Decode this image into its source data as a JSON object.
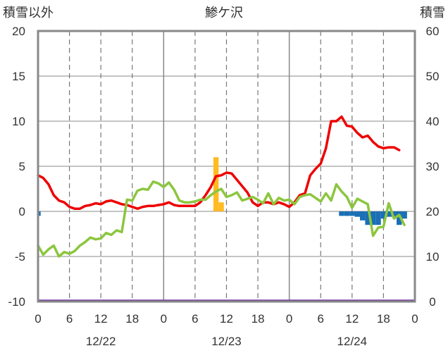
{
  "chart_data": {
    "type": "line",
    "title": "鯵ケ沢",
    "ylabel_left": "積雪以外",
    "ylabel_right": "積雪",
    "ylim_left": [
      -10,
      20
    ],
    "ylim_right": [
      0,
      60
    ],
    "yticks_left": [
      "20",
      "15",
      "10",
      "5",
      "0",
      "-5",
      "-10"
    ],
    "yticks_right": [
      "60",
      "50",
      "40",
      "30",
      "20",
      "10",
      "0"
    ],
    "xlim_hours": [
      0,
      72
    ],
    "xticks_labels": [
      "0",
      "6",
      "12",
      "18",
      "0",
      "6",
      "12",
      "18",
      "0",
      "6",
      "12",
      "18",
      "0"
    ],
    "date_labels": [
      "12/22",
      "12/23",
      "12/24"
    ],
    "grid": true,
    "series": [
      {
        "color": "#ee0000",
        "axis": "left",
        "values": [
          [
            0,
            4.0
          ],
          [
            1,
            3.7
          ],
          [
            2,
            3.0
          ],
          [
            3,
            1.8
          ],
          [
            4,
            1.2
          ],
          [
            5,
            1.0
          ],
          [
            6,
            0.5
          ],
          [
            7,
            0.3
          ],
          [
            8,
            0.3
          ],
          [
            9,
            0.6
          ],
          [
            10,
            0.7
          ],
          [
            11,
            0.9
          ],
          [
            12,
            0.8
          ],
          [
            13,
            1.1
          ],
          [
            14,
            1.2
          ],
          [
            15,
            1.0
          ],
          [
            16,
            0.8
          ],
          [
            17,
            0.7
          ],
          [
            18,
            0.5
          ],
          [
            19,
            0.3
          ],
          [
            20,
            0.5
          ],
          [
            21,
            0.6
          ],
          [
            22,
            0.6
          ],
          [
            23,
            0.7
          ],
          [
            24,
            0.8
          ],
          [
            25,
            1.0
          ],
          [
            26,
            0.7
          ],
          [
            27,
            0.6
          ],
          [
            28,
            0.6
          ],
          [
            29,
            0.6
          ],
          [
            30,
            0.6
          ],
          [
            31,
            1.0
          ],
          [
            32,
            1.8
          ],
          [
            33,
            2.7
          ],
          [
            34,
            3.9
          ],
          [
            35,
            4.0
          ],
          [
            36,
            4.3
          ],
          [
            37,
            4.2
          ],
          [
            38,
            3.5
          ],
          [
            39,
            2.8
          ],
          [
            40,
            2.1
          ],
          [
            41,
            1.0
          ],
          [
            42,
            0.6
          ],
          [
            43,
            1.0
          ],
          [
            44,
            1.0
          ],
          [
            45,
            0.8
          ],
          [
            46,
            1.0
          ],
          [
            47,
            0.8
          ],
          [
            48,
            0.5
          ],
          [
            49,
            1.0
          ],
          [
            50,
            1.8
          ],
          [
            51,
            2.0
          ],
          [
            52,
            4.0
          ],
          [
            53,
            4.7
          ],
          [
            54,
            5.3
          ],
          [
            55,
            7.0
          ],
          [
            56,
            10.0
          ],
          [
            57,
            10.0
          ],
          [
            58,
            10.5
          ],
          [
            59,
            9.5
          ],
          [
            60,
            9.4
          ],
          [
            61,
            8.7
          ],
          [
            62,
            8.2
          ],
          [
            63,
            8.4
          ],
          [
            64,
            7.7
          ],
          [
            65,
            7.2
          ],
          [
            66,
            7.0
          ],
          [
            67,
            7.1
          ],
          [
            68,
            7.1
          ],
          [
            69,
            6.8
          ]
        ]
      },
      {
        "color": "#8cc63f",
        "axis": "left",
        "values": [
          [
            0,
            -3.8
          ],
          [
            1,
            -4.8
          ],
          [
            2,
            -4.2
          ],
          [
            3,
            -3.8
          ],
          [
            4,
            -5.0
          ],
          [
            5,
            -4.5
          ],
          [
            6,
            -4.7
          ],
          [
            7,
            -4.4
          ],
          [
            8,
            -3.8
          ],
          [
            9,
            -3.4
          ],
          [
            10,
            -2.9
          ],
          [
            11,
            -3.1
          ],
          [
            12,
            -3.0
          ],
          [
            13,
            -2.4
          ],
          [
            14,
            -2.6
          ],
          [
            15,
            -2.1
          ],
          [
            16,
            -2.3
          ],
          [
            17,
            1.3
          ],
          [
            18,
            1.2
          ],
          [
            19,
            2.3
          ],
          [
            20,
            2.5
          ],
          [
            21,
            2.4
          ],
          [
            22,
            3.3
          ],
          [
            23,
            3.1
          ],
          [
            24,
            2.7
          ],
          [
            25,
            3.2
          ],
          [
            26,
            2.4
          ],
          [
            27,
            1.2
          ],
          [
            28,
            1.0
          ],
          [
            29,
            1.0
          ],
          [
            30,
            1.1
          ],
          [
            31,
            1.3
          ],
          [
            32,
            1.3
          ],
          [
            33,
            1.8
          ],
          [
            34,
            2.2
          ],
          [
            35,
            2.5
          ],
          [
            36,
            1.6
          ],
          [
            37,
            1.8
          ],
          [
            38,
            2.1
          ],
          [
            39,
            1.2
          ],
          [
            40,
            1.4
          ],
          [
            41,
            1.6
          ],
          [
            42,
            1.3
          ],
          [
            43,
            0.9
          ],
          [
            44,
            2.0
          ],
          [
            45,
            0.8
          ],
          [
            46,
            1.5
          ],
          [
            47,
            1.2
          ],
          [
            48,
            1.3
          ],
          [
            49,
            0.8
          ],
          [
            50,
            1.6
          ],
          [
            51,
            1.8
          ],
          [
            52,
            1.9
          ],
          [
            53,
            1.5
          ],
          [
            54,
            1.1
          ],
          [
            55,
            2.0
          ],
          [
            56,
            1.2
          ],
          [
            57,
            3.0
          ],
          [
            58,
            2.2
          ],
          [
            59,
            1.6
          ],
          [
            60,
            0.4
          ],
          [
            61,
            1.4
          ],
          [
            62,
            1.1
          ],
          [
            63,
            0.8
          ],
          [
            64,
            -2.7
          ],
          [
            65,
            -1.8
          ],
          [
            66,
            -1.7
          ],
          [
            67,
            0.9
          ],
          [
            68,
            -0.8
          ],
          [
            69,
            -0.4
          ],
          [
            70,
            -1.5
          ]
        ]
      },
      {
        "color": "#ffbb22",
        "type": "bar",
        "axis": "left",
        "values": [
          [
            34,
            6.0
          ],
          [
            35,
            1.0
          ]
        ]
      },
      {
        "color": "#1a6fb5",
        "type": "bar",
        "axis": "left",
        "values": [
          [
            0,
            -0.5
          ],
          [
            58,
            -0.5
          ],
          [
            59,
            -0.5
          ],
          [
            60,
            -0.5
          ],
          [
            61,
            -0.6
          ],
          [
            62,
            -1.0
          ],
          [
            63,
            -1.5
          ],
          [
            64,
            -1.5
          ],
          [
            65,
            -1.5
          ],
          [
            66,
            -0.8
          ],
          [
            67,
            -0.6
          ],
          [
            68,
            -0.6
          ],
          [
            69,
            -1.5
          ],
          [
            70,
            -0.8
          ]
        ]
      },
      {
        "color": "#7030a0",
        "axis": "right",
        "values": [
          [
            0,
            0.2
          ],
          [
            72,
            0.2
          ]
        ]
      }
    ]
  }
}
